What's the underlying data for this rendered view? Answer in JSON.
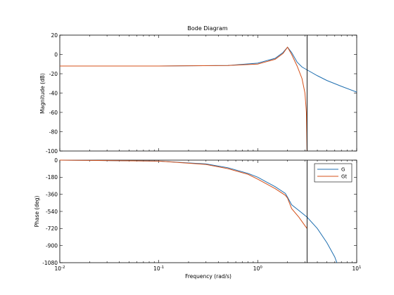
{
  "chart_data": [
    {
      "type": "line",
      "title": "Bode Diagram",
      "xlabel": "",
      "ylabel": "Magnitude (dB)",
      "xscale": "log",
      "xlim": [
        0.01,
        10
      ],
      "ylim": [
        -100,
        20
      ],
      "yticks": [
        "20",
        "0",
        "-20",
        "-40",
        "-60",
        "-80",
        "-100"
      ],
      "yticks_values": [
        20,
        0,
        -20,
        -40,
        -60,
        -80,
        -100
      ],
      "vertical_marker_x": 3.15,
      "colors": {
        "G": "#1f6fb0",
        "Gt": "#d4501a"
      },
      "series": [
        {
          "name": "G",
          "x": [
            0.01,
            0.1,
            0.5,
            1.0,
            1.5,
            1.8,
            2.0,
            2.2,
            2.5,
            2.8,
            3.15,
            4.0,
            5.0,
            7.0,
            10.0
          ],
          "values": [
            -12,
            -12,
            -11.5,
            -9,
            -4,
            2,
            7.5,
            2,
            -8,
            -13,
            -16,
            -22,
            -27,
            -33,
            -39
          ]
        },
        {
          "name": "Gt",
          "x": [
            0.01,
            0.1,
            0.5,
            1.0,
            1.5,
            1.8,
            2.0,
            2.2,
            2.5,
            2.8,
            3.0,
            3.1,
            3.15
          ],
          "values": [
            -12,
            -12,
            -11.5,
            -10,
            -5,
            1,
            7.5,
            0,
            -12,
            -25,
            -40,
            -60,
            -100
          ]
        }
      ]
    },
    {
      "type": "line",
      "title": "",
      "xlabel": "Frequency  (rad/s)",
      "ylabel": "Phase (deg)",
      "xscale": "log",
      "xlim": [
        0.01,
        10
      ],
      "ylim": [
        -1080,
        0
      ],
      "yticks": [
        "0",
        "-180",
        "-360",
        "-540",
        "-720",
        "-900",
        "-1080"
      ],
      "yticks_values": [
        0,
        -180,
        -360,
        -540,
        -720,
        -900,
        -1080
      ],
      "xticks_values": [
        0.01,
        0.1,
        1,
        10
      ],
      "vertical_marker_x": 3.15,
      "legend": {
        "placement": "top-right",
        "entries": [
          "G",
          "Gt"
        ]
      },
      "series": [
        {
          "name": "G",
          "x": [
            0.01,
            0.1,
            0.3,
            0.5,
            0.8,
            1.0,
            1.5,
            1.9,
            2.0,
            2.2,
            2.6,
            3.15,
            4.0,
            5.0,
            6.0,
            6.3
          ],
          "values": [
            0,
            -10,
            -40,
            -80,
            -140,
            -180,
            -280,
            -350,
            -390,
            -470,
            -530,
            -600,
            -720,
            -870,
            -1020,
            -1080
          ]
        },
        {
          "name": "Gt",
          "x": [
            0.01,
            0.1,
            0.3,
            0.5,
            0.8,
            1.0,
            1.5,
            1.9,
            2.0,
            2.2,
            2.6,
            3.0,
            3.15
          ],
          "values": [
            0,
            -10,
            -45,
            -90,
            -150,
            -200,
            -300,
            -370,
            -400,
            -510,
            -600,
            -690,
            -720
          ]
        }
      ]
    }
  ],
  "tick_labels_x": {
    "t0": {
      "base": "10",
      "exp": "-2"
    },
    "t1": {
      "base": "10",
      "exp": "-1"
    },
    "t2": {
      "base": "10",
      "exp": "0"
    },
    "t3": {
      "base": "10",
      "exp": "1"
    }
  }
}
